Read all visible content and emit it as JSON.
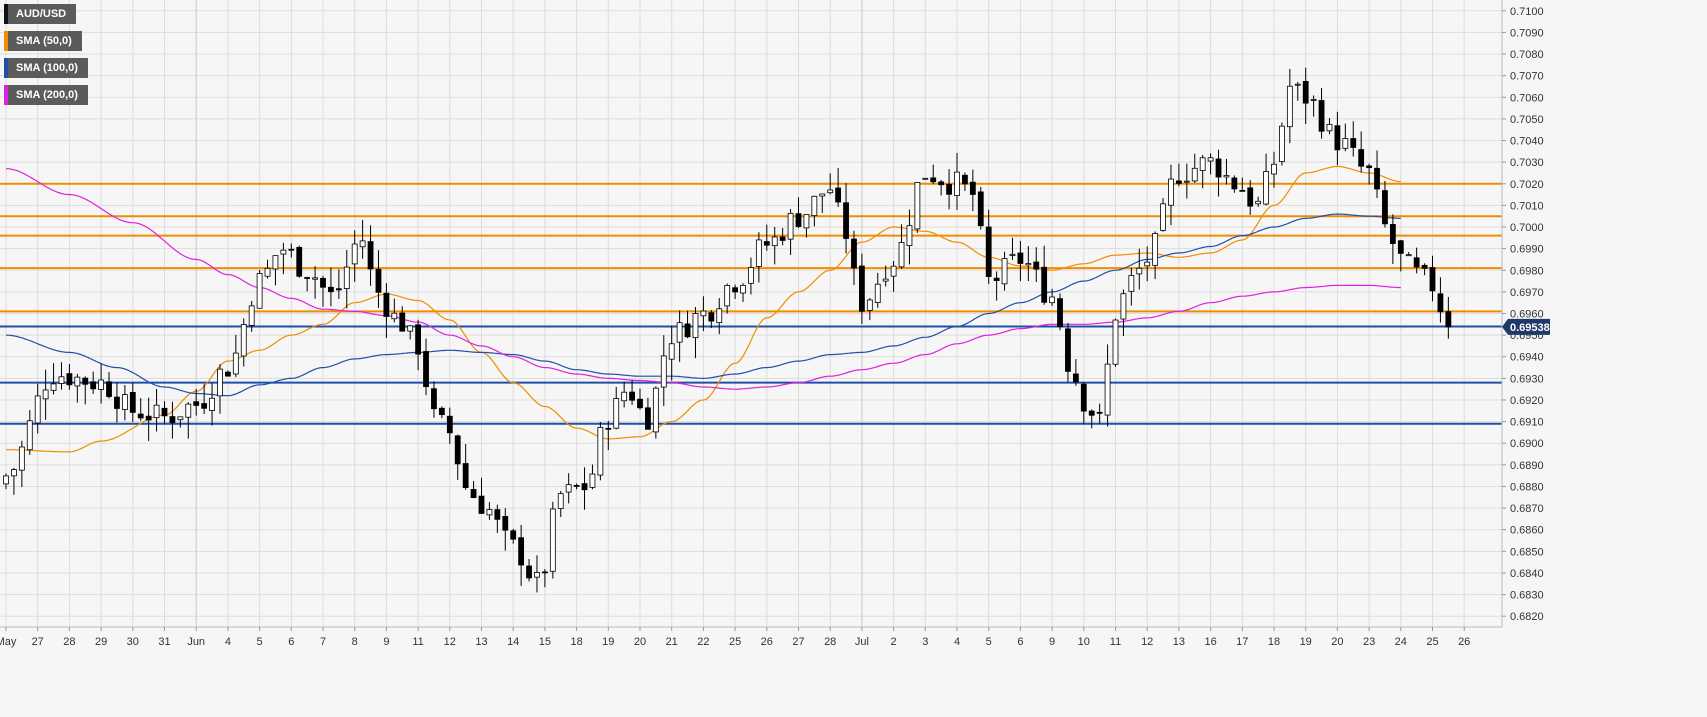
{
  "legend": [
    {
      "label": "AUD/USD",
      "color": "#111111"
    },
    {
      "label": "SMA (50,0)",
      "color": "#f08c00"
    },
    {
      "label": "SMA (100,0)",
      "color": "#1f4fa8"
    },
    {
      "label": "SMA (200,0)",
      "color": "#e020e0"
    }
  ],
  "current_price": "0.69538",
  "colors": {
    "background": "#f6f6f6",
    "grid": "#dddddd",
    "candle_up": "#ffffff",
    "candle_down": "#000000",
    "resistance": "#f08c00",
    "support": "#1f4fa8",
    "price_tag": "#1f3a6a"
  },
  "chart_data": {
    "type": "candlestick",
    "symbol": "AUD/USD",
    "ylim": [
      0.6815,
      0.7105
    ],
    "y_ticks": [
      "0.7100",
      "0.7090",
      "0.7080",
      "0.7070",
      "0.7060",
      "0.7050",
      "0.7040",
      "0.7030",
      "0.7020",
      "0.7010",
      "0.7000",
      "0.6990",
      "0.6980",
      "0.6970",
      "0.6960",
      "0.6950",
      "0.6940",
      "0.6930",
      "0.6920",
      "0.6910",
      "0.6900",
      "0.6890",
      "0.6880",
      "0.6870",
      "0.6860",
      "0.6850",
      "0.6840",
      "0.6830",
      "0.6820"
    ],
    "x_ticks": [
      "May",
      "27",
      "28",
      "29",
      "30",
      "31",
      "Jun",
      "4",
      "5",
      "6",
      "7",
      "8",
      "9",
      "11",
      "12",
      "13",
      "14",
      "15",
      "18",
      "19",
      "20",
      "21",
      "22",
      "25",
      "26",
      "27",
      "28",
      "Jul",
      "2",
      "3",
      "4",
      "5",
      "6",
      "9",
      "10",
      "11",
      "12",
      "13",
      "16",
      "17",
      "18",
      "19",
      "20",
      "23",
      "24",
      "25",
      "26"
    ],
    "month_separators": [
      "Jun",
      "Jul"
    ],
    "horizontal_levels": [
      {
        "value": 0.702,
        "color": "#f08c00"
      },
      {
        "value": 0.7005,
        "color": "#f08c00"
      },
      {
        "value": 0.6996,
        "color": "#f08c00"
      },
      {
        "value": 0.6981,
        "color": "#f08c00"
      },
      {
        "value": 0.6961,
        "color": "#f08c00"
      },
      {
        "value": 0.6954,
        "color": "#1f4fa8"
      },
      {
        "value": 0.6928,
        "color": "#1f4fa8"
      },
      {
        "value": 0.6909,
        "color": "#1f4fa8"
      }
    ],
    "close_path": [
      [
        0.0,
        0.6885
      ],
      [
        1.5,
        0.6932
      ],
      [
        3.0,
        0.6928
      ],
      [
        4.0,
        0.6915
      ],
      [
        5.0,
        0.6912
      ],
      [
        6.0,
        0.6918
      ],
      [
        7.0,
        0.6935
      ],
      [
        8.0,
        0.6975
      ],
      [
        8.7,
        0.699
      ],
      [
        9.5,
        0.698
      ],
      [
        10.3,
        0.6968
      ],
      [
        11.2,
        0.6995
      ],
      [
        11.7,
        0.697
      ],
      [
        12.3,
        0.6958
      ],
      [
        13.0,
        0.6945
      ],
      [
        13.5,
        0.6912
      ],
      [
        14.0,
        0.6905
      ],
      [
        14.5,
        0.688
      ],
      [
        15.0,
        0.6872
      ],
      [
        16.0,
        0.6852
      ],
      [
        16.8,
        0.6835
      ],
      [
        17.5,
        0.6876
      ],
      [
        18.3,
        0.688
      ],
      [
        19.0,
        0.6912
      ],
      [
        19.6,
        0.6925
      ],
      [
        20.2,
        0.6912
      ],
      [
        21.0,
        0.695
      ],
      [
        22.0,
        0.696
      ],
      [
        23.0,
        0.6975
      ],
      [
        24.0,
        0.6992
      ],
      [
        25.0,
        0.7005
      ],
      [
        26.0,
        0.7018
      ],
      [
        26.3,
        0.7005
      ],
      [
        27.0,
        0.6965
      ],
      [
        28.0,
        0.6985
      ],
      [
        29.0,
        0.7025
      ],
      [
        30.0,
        0.702
      ],
      [
        30.5,
        0.7015
      ],
      [
        31.0,
        0.6975
      ],
      [
        32.0,
        0.6985
      ],
      [
        33.0,
        0.6968
      ],
      [
        33.6,
        0.6935
      ],
      [
        34.0,
        0.692
      ],
      [
        34.5,
        0.691
      ],
      [
        35.0,
        0.696
      ],
      [
        35.5,
        0.6975
      ],
      [
        36.0,
        0.6985
      ],
      [
        37.0,
        0.7025
      ],
      [
        38.0,
        0.703
      ],
      [
        38.8,
        0.702
      ],
      [
        39.5,
        0.701
      ],
      [
        40.0,
        0.703
      ],
      [
        40.5,
        0.7065
      ],
      [
        41.0,
        0.706
      ],
      [
        42.0,
        0.704
      ],
      [
        43.0,
        0.7025
      ],
      [
        43.5,
        0.7
      ],
      [
        44.0,
        0.6985
      ],
      [
        44.5,
        0.6978
      ],
      [
        45.0,
        0.6973
      ],
      [
        45.5,
        0.69538
      ]
    ],
    "series": [
      {
        "name": "SMA (50,0)",
        "color": "#f08c00",
        "points": [
          [
            0.0,
            0.6897
          ],
          [
            2.0,
            0.6896
          ],
          [
            3.0,
            0.6901
          ],
          [
            5.0,
            0.6913
          ],
          [
            6.0,
            0.6924
          ],
          [
            7.0,
            0.6938
          ],
          [
            8.0,
            0.6943
          ],
          [
            9.0,
            0.695
          ],
          [
            10.0,
            0.6955
          ],
          [
            11.0,
            0.6965
          ],
          [
            12.0,
            0.6969
          ],
          [
            13.0,
            0.6966
          ],
          [
            14.0,
            0.6957
          ],
          [
            15.0,
            0.6942
          ],
          [
            16.0,
            0.6928
          ],
          [
            17.0,
            0.6917
          ],
          [
            18.0,
            0.6907
          ],
          [
            19.0,
            0.6902
          ],
          [
            20.0,
            0.6903
          ],
          [
            21.0,
            0.691
          ],
          [
            22.0,
            0.692
          ],
          [
            23.0,
            0.6937
          ],
          [
            24.0,
            0.6958
          ],
          [
            25.0,
            0.697
          ],
          [
            26.0,
            0.698
          ],
          [
            27.0,
            0.6993
          ],
          [
            28.0,
            0.7
          ],
          [
            29.0,
            0.6998
          ],
          [
            30.0,
            0.6993
          ],
          [
            31.0,
            0.6986
          ],
          [
            32.0,
            0.6982
          ],
          [
            33.0,
            0.698
          ],
          [
            34.0,
            0.6983
          ],
          [
            35.0,
            0.6987
          ],
          [
            36.0,
            0.6988
          ],
          [
            37.0,
            0.6986
          ],
          [
            38.0,
            0.6988
          ],
          [
            39.0,
            0.6994
          ],
          [
            40.0,
            0.701
          ],
          [
            41.0,
            0.7025
          ],
          [
            42.0,
            0.7028
          ],
          [
            43.0,
            0.7025
          ],
          [
            44.0,
            0.7021
          ]
        ]
      },
      {
        "name": "SMA (100,0)",
        "color": "#1f4fa8",
        "points": [
          [
            0.0,
            0.695
          ],
          [
            2.0,
            0.6942
          ],
          [
            3.5,
            0.6935
          ],
          [
            5.0,
            0.6926
          ],
          [
            6.0,
            0.6923
          ],
          [
            7.0,
            0.6922
          ],
          [
            8.0,
            0.6927
          ],
          [
            9.0,
            0.693
          ],
          [
            10.0,
            0.6935
          ],
          [
            11.0,
            0.6939
          ],
          [
            12.0,
            0.6941
          ],
          [
            13.0,
            0.6942
          ],
          [
            14.0,
            0.6943
          ],
          [
            15.0,
            0.6942
          ],
          [
            16.0,
            0.6941
          ],
          [
            17.0,
            0.6938
          ],
          [
            18.0,
            0.6934
          ],
          [
            19.0,
            0.6932
          ],
          [
            20.0,
            0.6931
          ],
          [
            21.0,
            0.6931
          ],
          [
            22.0,
            0.693
          ],
          [
            23.0,
            0.6932
          ],
          [
            24.0,
            0.6935
          ],
          [
            25.0,
            0.6938
          ],
          [
            26.0,
            0.6941
          ],
          [
            27.0,
            0.6942
          ],
          [
            28.0,
            0.6945
          ],
          [
            29.0,
            0.6949
          ],
          [
            30.0,
            0.6954
          ],
          [
            31.0,
            0.696
          ],
          [
            32.0,
            0.6965
          ],
          [
            33.0,
            0.697
          ],
          [
            34.0,
            0.6975
          ],
          [
            35.0,
            0.698
          ],
          [
            36.0,
            0.6985
          ],
          [
            37.0,
            0.6988
          ],
          [
            38.0,
            0.6991
          ],
          [
            39.0,
            0.6996
          ],
          [
            40.0,
            0.7
          ],
          [
            41.0,
            0.7004
          ],
          [
            42.0,
            0.7006
          ],
          [
            43.0,
            0.7005
          ],
          [
            44.0,
            0.7004
          ]
        ]
      },
      {
        "name": "SMA (200,0)",
        "color": "#e020e0",
        "points": [
          [
            0.0,
            0.7027
          ],
          [
            2.0,
            0.7015
          ],
          [
            4.0,
            0.7002
          ],
          [
            6.0,
            0.6985
          ],
          [
            7.0,
            0.6978
          ],
          [
            8.0,
            0.6972
          ],
          [
            9.0,
            0.6967
          ],
          [
            10.0,
            0.6962
          ],
          [
            11.0,
            0.6961
          ],
          [
            12.0,
            0.6959
          ],
          [
            13.0,
            0.6956
          ],
          [
            14.0,
            0.695
          ],
          [
            15.0,
            0.6945
          ],
          [
            16.0,
            0.694
          ],
          [
            17.0,
            0.6935
          ],
          [
            18.0,
            0.6932
          ],
          [
            19.0,
            0.693
          ],
          [
            20.0,
            0.6929
          ],
          [
            21.0,
            0.6928
          ],
          [
            22.0,
            0.6926
          ],
          [
            23.0,
            0.6925
          ],
          [
            24.0,
            0.6926
          ],
          [
            25.0,
            0.6928
          ],
          [
            26.0,
            0.6931
          ],
          [
            27.0,
            0.6934
          ],
          [
            28.0,
            0.6937
          ],
          [
            29.0,
            0.6941
          ],
          [
            30.0,
            0.6946
          ],
          [
            31.0,
            0.695
          ],
          [
            32.0,
            0.6953
          ],
          [
            33.0,
            0.6955
          ],
          [
            34.0,
            0.6955
          ],
          [
            35.0,
            0.6956
          ],
          [
            36.0,
            0.6958
          ],
          [
            37.0,
            0.6961
          ],
          [
            38.0,
            0.6965
          ],
          [
            39.0,
            0.6968
          ],
          [
            40.0,
            0.697
          ],
          [
            41.0,
            0.6972
          ],
          [
            42.0,
            0.6973
          ],
          [
            43.0,
            0.6973
          ],
          [
            44.0,
            0.6972
          ]
        ]
      }
    ],
    "legend_position": "top-left",
    "grid": true
  }
}
